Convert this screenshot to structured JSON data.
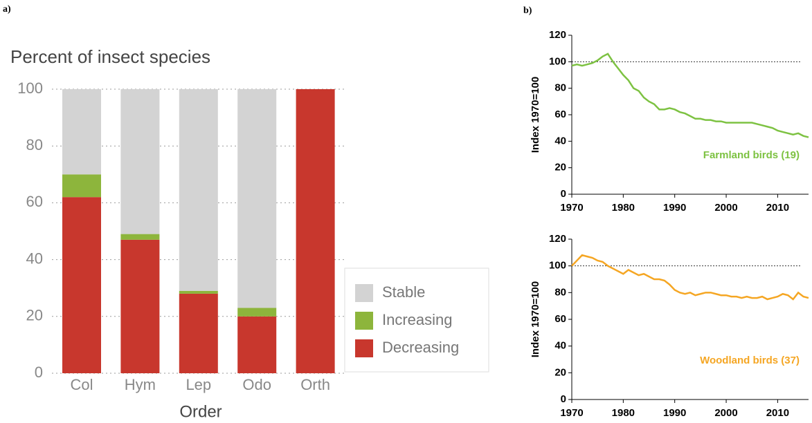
{
  "panel_labels": [
    "a)",
    "b)"
  ],
  "chart_data": [
    {
      "type": "bar",
      "stacked": true,
      "title": "Percent of insect species",
      "x_label": "Order",
      "categories": [
        "Col",
        "Hym",
        "Lep",
        "Odo",
        "Orth"
      ],
      "series": [
        {
          "name": "Decreasing",
          "color": "#c8372d",
          "values": [
            62,
            47,
            28,
            20,
            100
          ]
        },
        {
          "name": "Increasing",
          "color": "#8db53c",
          "values": [
            8,
            2,
            1,
            3,
            0
          ]
        },
        {
          "name": "Stable",
          "color": "#d3d3d3",
          "values": [
            30,
            51,
            71,
            77,
            0
          ]
        }
      ],
      "ylim": [
        0,
        100
      ],
      "yticks": [
        0,
        20,
        40,
        60,
        80,
        100
      ],
      "grid": true,
      "legend": "lower right"
    },
    {
      "type": "line",
      "y_label": "Index 1970=100",
      "annotation": "Farmland birds (19)",
      "color": "#7dc242",
      "x": [
        1970,
        1971,
        1972,
        1973,
        1974,
        1975,
        1976,
        1977,
        1978,
        1979,
        1980,
        1981,
        1982,
        1983,
        1984,
        1985,
        1986,
        1987,
        1988,
        1989,
        1990,
        1991,
        1992,
        1993,
        1994,
        1995,
        1996,
        1997,
        1998,
        1999,
        2000,
        2001,
        2002,
        2003,
        2004,
        2005,
        2006,
        2007,
        2008,
        2009,
        2010,
        2011,
        2012,
        2013,
        2014,
        2015,
        2016
      ],
      "values": [
        97,
        98,
        97,
        98,
        99,
        101,
        104,
        106,
        100,
        95,
        90,
        86,
        80,
        78,
        73,
        70,
        68,
        64,
        64,
        65,
        64,
        62,
        61,
        59,
        57,
        57,
        56,
        56,
        55,
        55,
        54,
        54,
        54,
        54,
        54,
        54,
        53,
        52,
        51,
        50,
        48,
        47,
        46,
        45,
        46,
        44,
        43
      ],
      "reference_line": 100,
      "xlim": [
        1970,
        2016
      ],
      "xticks": [
        1970,
        1980,
        1990,
        2000,
        2010
      ],
      "ylim": [
        0,
        120
      ],
      "yticks": [
        0,
        20,
        40,
        60,
        80,
        100,
        120
      ]
    },
    {
      "type": "line",
      "y_label": "Index 1970=100",
      "annotation": "Woodland birds (37)",
      "color": "#f5a623",
      "x": [
        1970,
        1971,
        1972,
        1973,
        1974,
        1975,
        1976,
        1977,
        1978,
        1979,
        1980,
        1981,
        1982,
        1983,
        1984,
        1985,
        1986,
        1987,
        1988,
        1989,
        1990,
        1991,
        1992,
        1993,
        1994,
        1995,
        1996,
        1997,
        1998,
        1999,
        2000,
        2001,
        2002,
        2003,
        2004,
        2005,
        2006,
        2007,
        2008,
        2009,
        2010,
        2011,
        2012,
        2013,
        2014,
        2015,
        2016
      ],
      "values": [
        100,
        104,
        108,
        107,
        106,
        104,
        103,
        100,
        98,
        96,
        94,
        97,
        95,
        93,
        94,
        92,
        90,
        90,
        89,
        86,
        82,
        80,
        79,
        80,
        78,
        79,
        80,
        80,
        79,
        78,
        78,
        77,
        77,
        76,
        77,
        76,
        76,
        77,
        75,
        76,
        77,
        79,
        78,
        75,
        80,
        77,
        76
      ],
      "reference_line": 100,
      "xlim": [
        1970,
        2016
      ],
      "xticks": [
        1970,
        1980,
        1990,
        2000,
        2010
      ],
      "ylim": [
        0,
        120
      ],
      "yticks": [
        0,
        20,
        40,
        60,
        80,
        100,
        120
      ]
    }
  ]
}
